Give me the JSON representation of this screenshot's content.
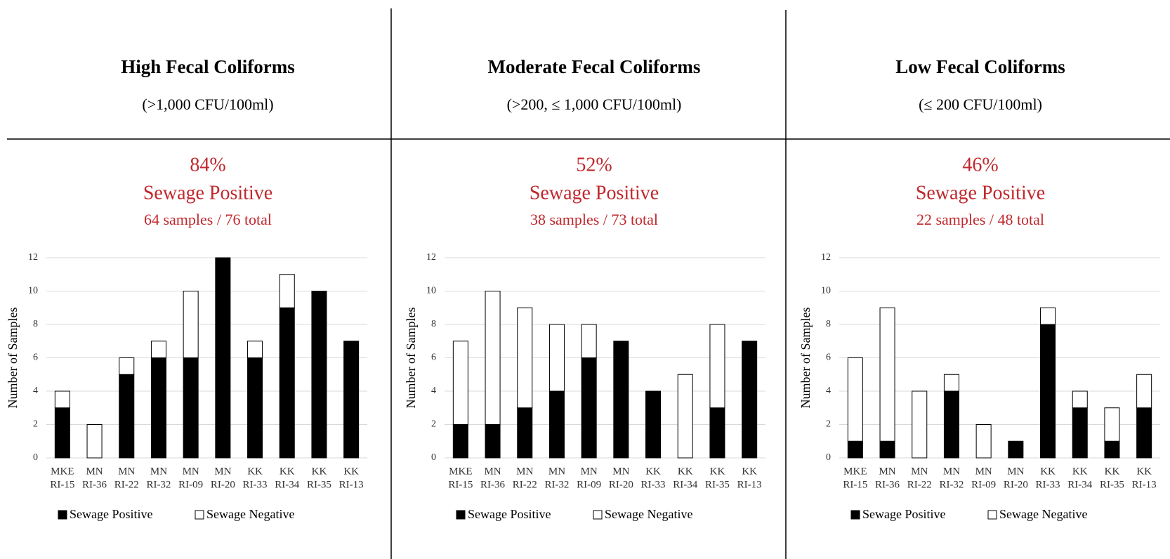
{
  "chart_data": [
    {
      "type": "bar",
      "stacked": true,
      "title": "High Fecal Coliforms",
      "subtitle": "(>1,000 CFU/100ml)",
      "headline": "84%",
      "headline_label": "Sewage Positive",
      "sample_text": "64 samples / 76 total",
      "y_label": "Number of Samples",
      "categories": [
        [
          "MKE",
          "RI-15"
        ],
        [
          "MN",
          "RI-36"
        ],
        [
          "MN",
          "RI-22"
        ],
        [
          "MN",
          "RI-32"
        ],
        [
          "MN",
          "RI-09"
        ],
        [
          "MN",
          "RI-20"
        ],
        [
          "KK",
          "RI-33"
        ],
        [
          "KK",
          "RI-34"
        ],
        [
          "KK",
          "RI-35"
        ],
        [
          "KK",
          "RI-13"
        ]
      ],
      "series": [
        {
          "name": "Sewage Positive",
          "color": "#000000",
          "values": [
            3,
            0,
            5,
            6,
            6,
            12,
            6,
            9,
            10,
            7
          ]
        },
        {
          "name": "Sewage Negative",
          "color": "#ffffff",
          "values": [
            1,
            2,
            1,
            1,
            4,
            0,
            1,
            2,
            0,
            0
          ]
        }
      ],
      "ylim": [
        0,
        12
      ],
      "yticks": [
        0,
        2,
        4,
        6,
        8,
        10,
        12
      ],
      "grid": true,
      "legend": "bottom"
    },
    {
      "type": "bar",
      "stacked": true,
      "title": "Moderate Fecal Coliforms",
      "subtitle": "(>200, ≤ 1,000 CFU/100ml)",
      "headline": "52%",
      "headline_label": "Sewage Positive",
      "sample_text": "38 samples / 73 total",
      "y_label": "Number of Samples",
      "categories": [
        [
          "MKE",
          "RI-15"
        ],
        [
          "MN",
          "RI-36"
        ],
        [
          "MN",
          "RI-22"
        ],
        [
          "MN",
          "RI-32"
        ],
        [
          "MN",
          "RI-09"
        ],
        [
          "MN",
          "RI-20"
        ],
        [
          "KK",
          "RI-33"
        ],
        [
          "KK",
          "RI-34"
        ],
        [
          "KK",
          "RI-35"
        ],
        [
          "KK",
          "RI-13"
        ]
      ],
      "series": [
        {
          "name": "Sewage Positive",
          "color": "#000000",
          "values": [
            2,
            2,
            3,
            4,
            6,
            7,
            4,
            0,
            3,
            7
          ]
        },
        {
          "name": "Sewage Negative",
          "color": "#ffffff",
          "values": [
            5,
            8,
            6,
            4,
            2,
            0,
            0,
            5,
            5,
            0
          ]
        }
      ],
      "ylim": [
        0,
        12
      ],
      "yticks": [
        0,
        2,
        4,
        6,
        8,
        10,
        12
      ],
      "grid": true,
      "legend": "bottom"
    },
    {
      "type": "bar",
      "stacked": true,
      "title": "Low Fecal Coliforms",
      "subtitle": "(≤ 200 CFU/100ml)",
      "headline": "46%",
      "headline_label": "Sewage Positive",
      "sample_text": "22 samples / 48 total",
      "y_label": "Number of Samples",
      "categories": [
        [
          "MKE",
          "RI-15"
        ],
        [
          "MN",
          "RI-36"
        ],
        [
          "MN",
          "RI-22"
        ],
        [
          "MN",
          "RI-32"
        ],
        [
          "MN",
          "RI-09"
        ],
        [
          "MN",
          "RI-20"
        ],
        [
          "KK",
          "RI-33"
        ],
        [
          "KK",
          "RI-34"
        ],
        [
          "KK",
          "RI-35"
        ],
        [
          "KK",
          "RI-13"
        ]
      ],
      "series": [
        {
          "name": "Sewage Positive",
          "color": "#000000",
          "values": [
            1,
            1,
            0,
            4,
            0,
            1,
            8,
            3,
            1,
            3
          ]
        },
        {
          "name": "Sewage Negative",
          "color": "#ffffff",
          "values": [
            5,
            8,
            4,
            1,
            2,
            0,
            1,
            1,
            2,
            2
          ]
        }
      ],
      "ylim": [
        0,
        12
      ],
      "yticks": [
        0,
        2,
        4,
        6,
        8,
        10,
        12
      ],
      "grid": true,
      "legend": "bottom"
    }
  ]
}
